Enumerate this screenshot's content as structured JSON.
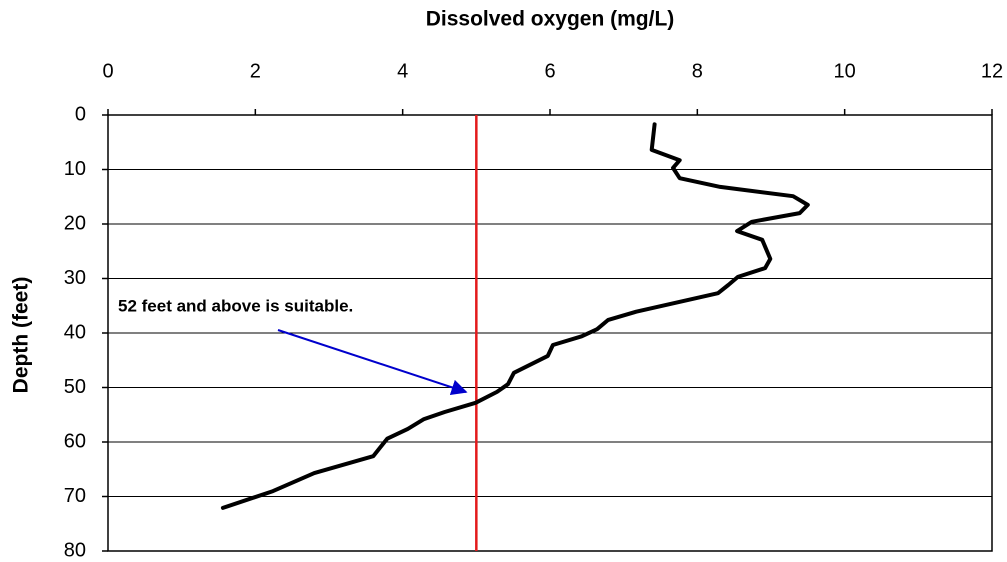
{
  "chart_data": {
    "type": "line",
    "title": "Dissolved oxygen (mg/L)",
    "y_label": "Depth  (feet)",
    "xlim": [
      0,
      12
    ],
    "xticks": [
      0,
      2,
      4,
      6,
      8,
      10,
      12
    ],
    "ylim": [
      0,
      80
    ],
    "yticks": [
      0,
      10,
      20,
      30,
      40,
      50,
      60,
      70,
      80
    ],
    "y_inverted": true,
    "x_axis_position": "top",
    "grid": true,
    "series": [
      {
        "color": "#000000",
        "x": [
          7.42,
          7.38,
          7.76,
          7.67,
          7.76,
          8.31,
          9.3,
          9.5,
          9.39,
          8.74,
          8.54,
          8.88,
          8.99,
          8.92,
          8.55,
          8.42,
          8.28,
          7.17,
          6.79,
          6.64,
          6.43,
          6.04,
          5.97,
          5.51,
          5.43,
          5.28,
          4.99,
          4.57,
          4.29,
          4.07,
          3.79,
          3.6,
          2.8,
          2.24,
          1.56
        ],
        "values": [
          1.7,
          6.4,
          8.3,
          9.7,
          11.6,
          13.2,
          14.9,
          16.5,
          18.0,
          19.6,
          21.3,
          22.9,
          26.4,
          28.1,
          29.7,
          31.2,
          32.7,
          36.1,
          37.6,
          39.3,
          40.6,
          42.2,
          44.2,
          47.3,
          49.4,
          50.8,
          52.8,
          54.5,
          55.8,
          57.6,
          59.4,
          62.6,
          65.7,
          69.0,
          72.1
        ]
      }
    ],
    "vline": {
      "x": 5,
      "color": "#e31a1c"
    },
    "annotation": {
      "text": "52 feet and above is suitable.",
      "color": "#0000cc"
    }
  }
}
